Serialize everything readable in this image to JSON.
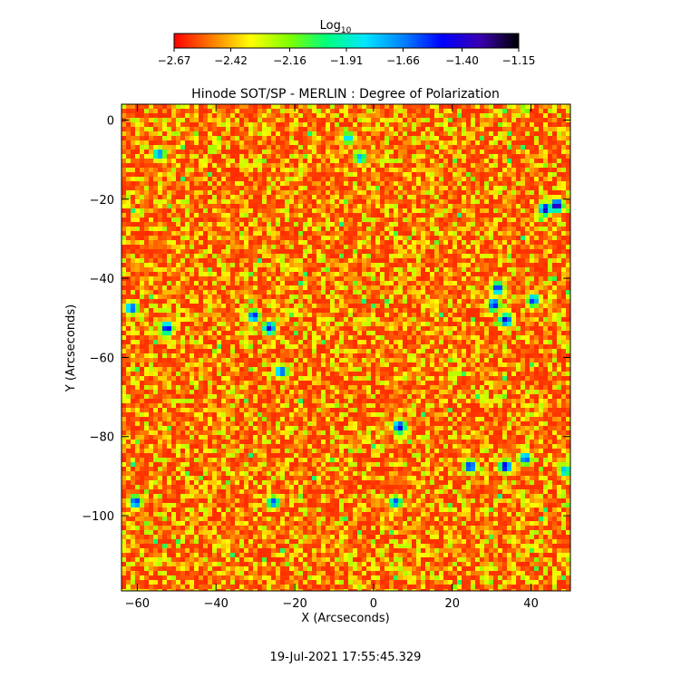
{
  "chart_data": {
    "type": "heatmap",
    "title": "Hinode SOT/SP - MERLIN : Degree of Polarization",
    "xlabel": "X (Arcseconds)",
    "ylabel": "Y (Arcseconds)",
    "xlim": [
      -64,
      50
    ],
    "ylim": [
      -119,
      4
    ],
    "x_ticks": [
      -60,
      -40,
      -20,
      0,
      20,
      40
    ],
    "x_tick_labels": [
      "−60",
      "−40",
      "−20",
      "0",
      "20",
      "40"
    ],
    "y_ticks": [
      0,
      -20,
      -40,
      -60,
      -80,
      -100
    ],
    "y_tick_labels": [
      "0",
      "−20",
      "−40",
      "−60",
      "−80",
      "−100"
    ],
    "colorbar": {
      "label": "Log",
      "label_sub": "10",
      "range": [
        -2.67,
        -1.15
      ],
      "ticks": [
        -2.67,
        -2.42,
        -2.16,
        -1.91,
        -1.66,
        -1.4,
        -1.15
      ],
      "tick_labels": [
        "−2.67",
        "−2.42",
        "−2.16",
        "−1.91",
        "−1.66",
        "−1.40",
        "−1.15"
      ],
      "colors": [
        "#ff0000",
        "#ff7f00",
        "#ffff00",
        "#7fff00",
        "#00ff7f",
        "#00e5ff",
        "#0080ff",
        "#0000ff",
        "#3a00b0",
        "#000000"
      ]
    },
    "hotspots": [
      {
        "x": 46,
        "y": -21,
        "value": -1.2
      },
      {
        "x": 43,
        "y": -22,
        "value": -1.3
      },
      {
        "x": 33,
        "y": -50,
        "value": -1.35
      },
      {
        "x": 30,
        "y": -46,
        "value": -1.4
      },
      {
        "x": 31,
        "y": -42,
        "value": -1.45
      },
      {
        "x": 40,
        "y": -45,
        "value": -1.5
      },
      {
        "x": 33,
        "y": -87,
        "value": -1.35
      },
      {
        "x": 24,
        "y": -87,
        "value": -1.4
      },
      {
        "x": 38,
        "y": -85,
        "value": -1.5
      },
      {
        "x": 6,
        "y": -77,
        "value": -1.35
      },
      {
        "x": -27,
        "y": -52,
        "value": -1.35
      },
      {
        "x": -31,
        "y": -49,
        "value": -1.45
      },
      {
        "x": -53,
        "y": -52,
        "value": -1.4
      },
      {
        "x": -61,
        "y": -96,
        "value": -1.45
      },
      {
        "x": -26,
        "y": -96,
        "value": -1.55
      },
      {
        "x": -24,
        "y": -63,
        "value": -1.5
      },
      {
        "x": 5,
        "y": -96,
        "value": -1.55
      },
      {
        "x": -55,
        "y": -8,
        "value": -1.6
      },
      {
        "x": -4,
        "y": -9,
        "value": -1.7
      },
      {
        "x": -7,
        "y": -4,
        "value": -1.75
      },
      {
        "x": 48,
        "y": -88,
        "value": -1.7
      },
      {
        "x": -62,
        "y": -47,
        "value": -1.5
      }
    ]
  },
  "timestamp": "19-Jul-2021  17:55:45.329"
}
